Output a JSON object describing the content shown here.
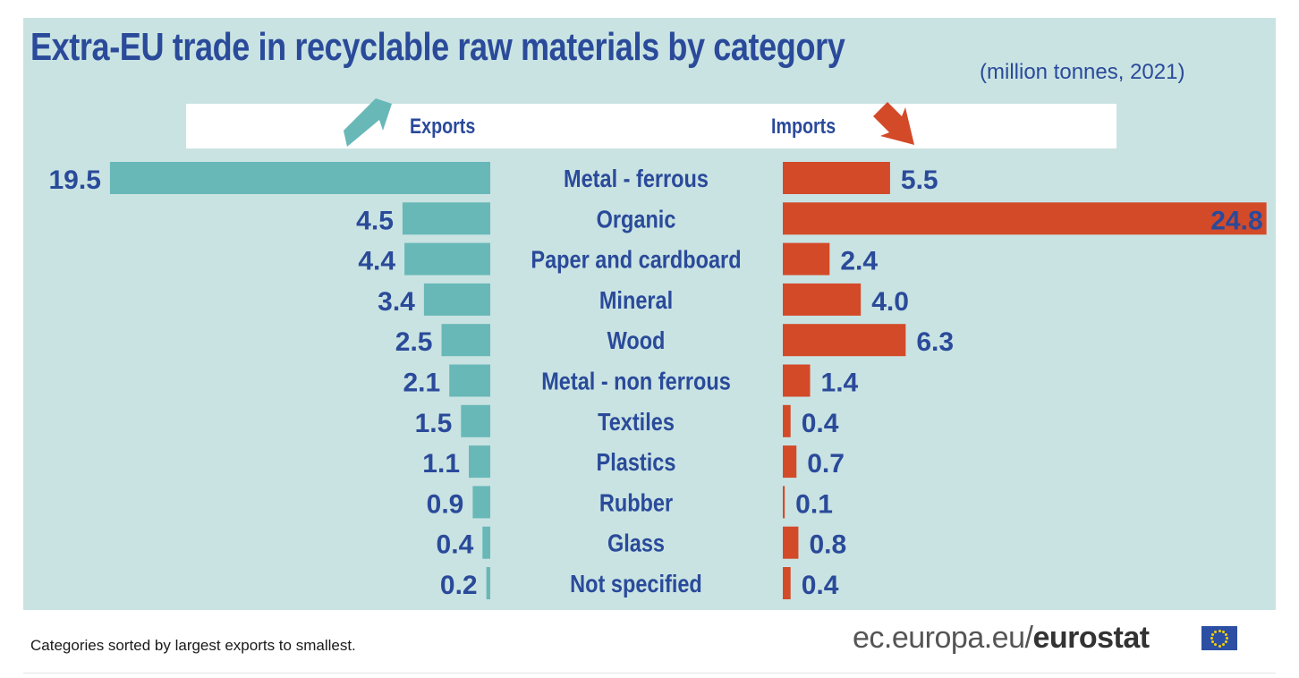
{
  "title": "Extra-EU trade in recyclable raw materials by category",
  "subtitle": "(million tonnes, 2021)",
  "legend": {
    "exports": "Exports",
    "imports": "Imports"
  },
  "colors": {
    "panel": "#c9e3e2",
    "exports": "#68b8b8",
    "imports": "#d34a29",
    "text": "#2a4a9a"
  },
  "footer": {
    "note": "Categories sorted by largest exports to smallest.",
    "source_prefix": "ec.europa.eu/",
    "source_brand": "eurostat"
  },
  "icons": {
    "exports_arrow": "up-right-arrow-icon",
    "imports_arrow": "down-right-arrow-icon",
    "flag": "eu-flag-icon"
  },
  "chart_data": {
    "type": "bar",
    "orientation": "horizontal-butterfly",
    "unit": "million tonnes",
    "categories": [
      "Metal - ferrous",
      "Organic",
      "Paper and cardboard",
      "Mineral",
      "Wood",
      "Metal - non ferrous",
      "Textiles",
      "Plastics",
      "Rubber",
      "Glass",
      "Not specified"
    ],
    "series": [
      {
        "name": "Exports",
        "values": [
          19.5,
          4.5,
          4.4,
          3.4,
          2.5,
          2.1,
          1.5,
          1.1,
          0.9,
          0.4,
          0.2
        ],
        "labels": [
          "19.5",
          "4.5",
          "4.4",
          "3.4",
          "2.5",
          "2.1",
          "1.5",
          "1.1",
          "0.9",
          "0.4",
          "0.2"
        ]
      },
      {
        "name": "Imports",
        "values": [
          5.5,
          24.8,
          2.4,
          4.0,
          6.3,
          1.4,
          0.4,
          0.7,
          0.1,
          0.8,
          0.4
        ],
        "labels": [
          "5.5",
          "24.8",
          "2.4",
          "4.0",
          "6.3",
          "1.4",
          "0.4",
          "0.7",
          "0.1",
          "0.8",
          "0.4"
        ]
      }
    ]
  }
}
